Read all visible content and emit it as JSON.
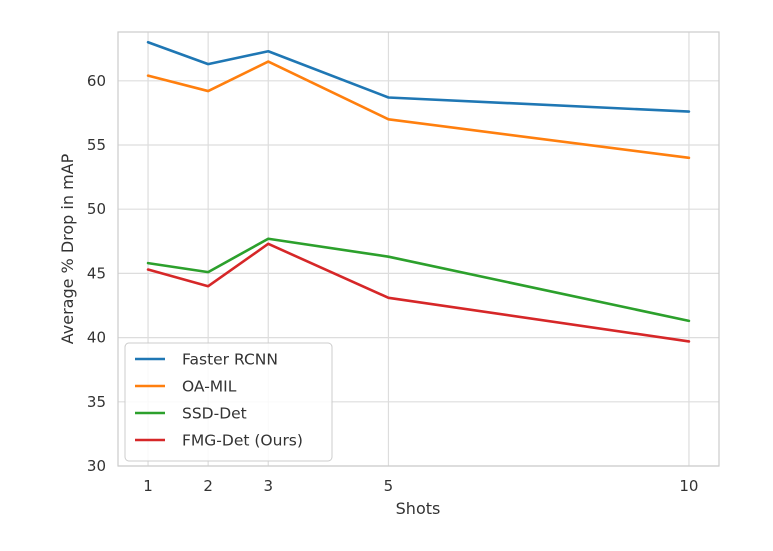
{
  "chart_data": {
    "type": "line",
    "x": [
      1,
      2,
      3,
      5,
      10
    ],
    "xticks": [
      "1",
      "2",
      "3",
      "5",
      "10"
    ],
    "yticks": [
      "30",
      "35",
      "40",
      "45",
      "50",
      "55",
      "60"
    ],
    "xlabel": "Shots",
    "ylabel": "Average % Drop in mAP",
    "xlim": [
      0.5,
      10.5
    ],
    "ylim": [
      30,
      63.8
    ],
    "grid": true,
    "legend_position": "lower-left",
    "series": [
      {
        "name": "Faster RCNN",
        "color": "#1f77b4",
        "values": [
          63.0,
          61.3,
          62.3,
          58.7,
          57.6
        ]
      },
      {
        "name": "OA-MIL",
        "color": "#ff7f0e",
        "values": [
          60.4,
          59.2,
          61.5,
          57.0,
          54.0
        ]
      },
      {
        "name": "SSD-Det",
        "color": "#2ca02c",
        "values": [
          45.8,
          45.1,
          47.7,
          46.3,
          41.3
        ]
      },
      {
        "name": "FMG-Det (Ours)",
        "color": "#d62728",
        "values": [
          45.3,
          44.0,
          47.3,
          43.1,
          39.7
        ]
      }
    ]
  }
}
